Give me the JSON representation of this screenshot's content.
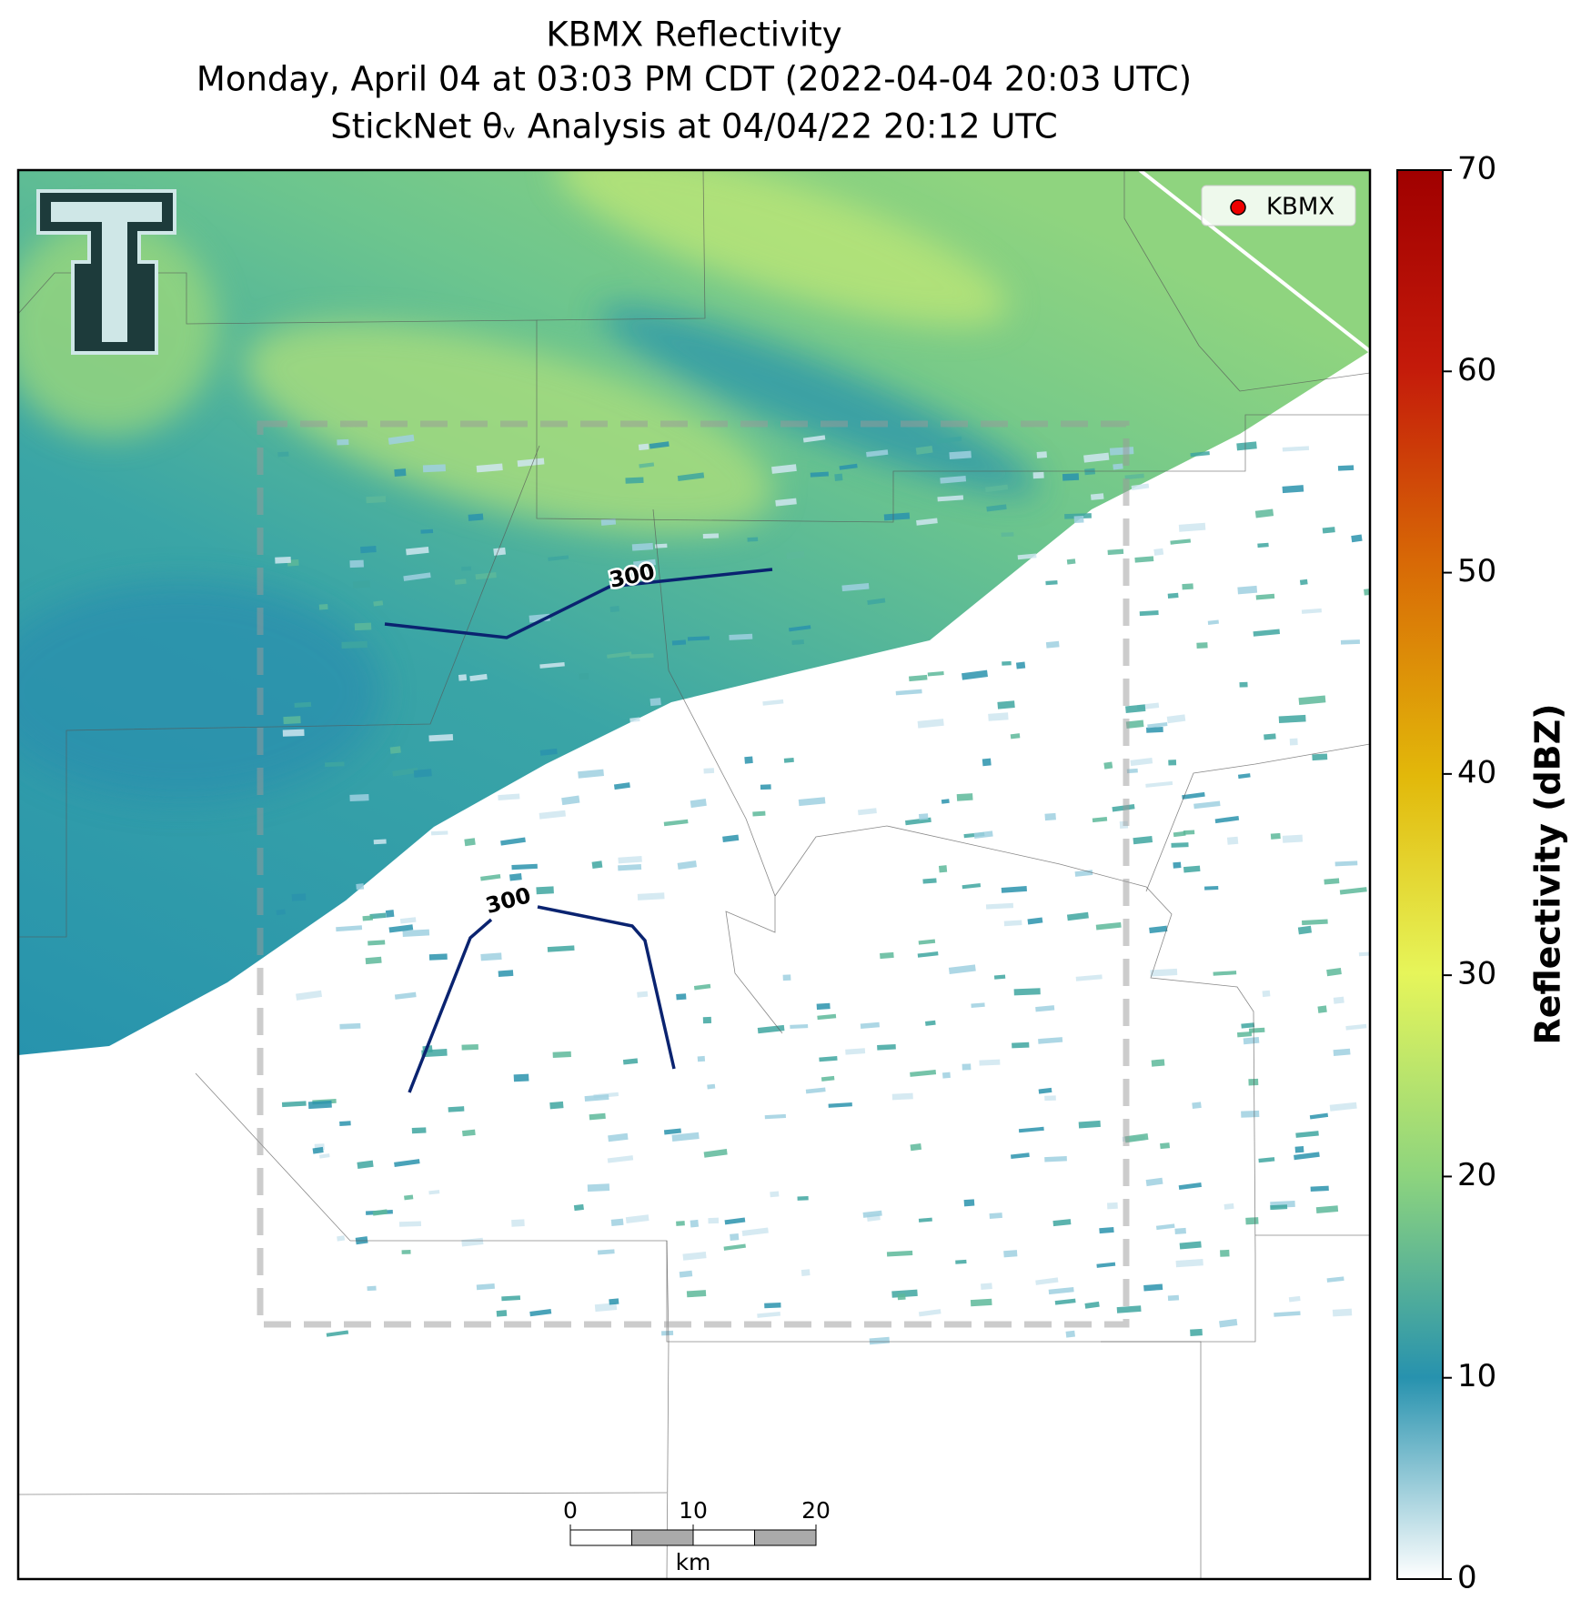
{
  "title": [
    "KBMX Reflectivity",
    "Monday, April 04 at 03:03 PM CDT (2022-04-04 20:03 UTC)",
    "StickNet θᵥ Analysis at 04/04/22 20:12 UTC"
  ],
  "legend": {
    "label": "KBMX"
  },
  "contours": [
    {
      "level": 300
    },
    {
      "level": 300
    }
  ],
  "scale_bar": {
    "ticks": [
      0,
      10,
      20
    ],
    "unit": "km"
  },
  "colorbar": {
    "label": "Reflectivity (dBZ)",
    "lim": [
      0,
      70
    ],
    "ticks": [
      0,
      10,
      20,
      30,
      40,
      50,
      60,
      70
    ]
  }
}
